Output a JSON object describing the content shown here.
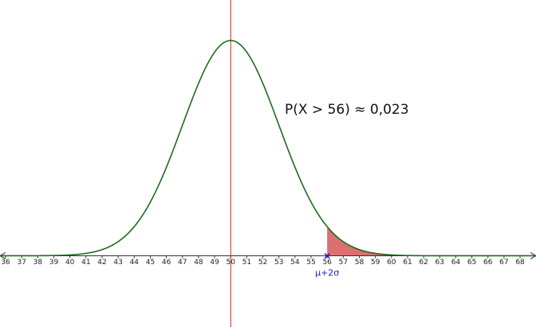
{
  "chart_data": {
    "type": "normal",
    "mean": 50,
    "sd": 3,
    "shade_from": 56,
    "point_label": "μ+2σ",
    "annotation": "P(X > 56) ≈ 0,023",
    "xlim": [
      35.65,
      68.99
    ],
    "ylim": [
      -0.044,
      0.158
    ],
    "xticks": [
      36,
      37,
      38,
      39,
      40,
      41,
      42,
      43,
      44,
      45,
      46,
      47,
      48,
      49,
      50,
      51,
      52,
      53,
      54,
      55,
      56,
      57,
      58,
      59,
      60,
      61,
      62,
      63,
      64,
      65,
      66,
      67,
      68
    ],
    "curve_color": "#1e6b1e",
    "shade_color": "#cc3333",
    "mean_line_color": "#cc2222",
    "point_color": "#1a1acc"
  }
}
